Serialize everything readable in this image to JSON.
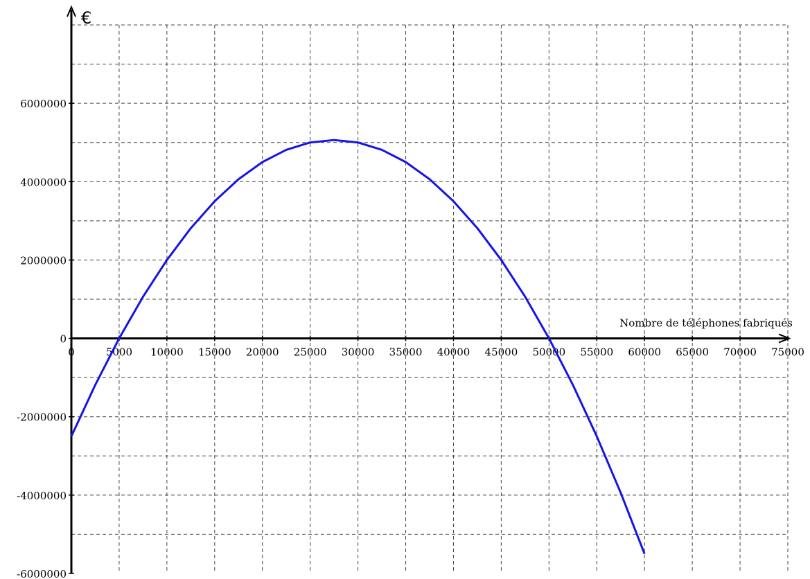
{
  "chart_data": {
    "type": "line",
    "title": "",
    "xlabel": "Nombre de téléphones fabriqués",
    "ylabel": "€",
    "xlim": [
      0,
      75000
    ],
    "ylim": [
      -6000000,
      8000000
    ],
    "grid": true,
    "x_major_ticks": [
      0,
      5000,
      10000,
      15000,
      20000,
      25000,
      30000,
      35000,
      40000,
      45000,
      50000,
      55000,
      60000,
      65000,
      70000,
      75000
    ],
    "x_tick_labels": [
      "0",
      "5000",
      "10000",
      "15000",
      "20000",
      "25000",
      "30000",
      "35000",
      "40000",
      "45000",
      "50000",
      "55000",
      "60000",
      "65000",
      "70000",
      "75000"
    ],
    "y_grid_step": 1000000,
    "y_major_ticks": [
      -6000000,
      -4000000,
      -2000000,
      0,
      2000000,
      4000000,
      6000000
    ],
    "y_tick_labels": [
      "-6000000",
      "-4000000",
      "-2000000",
      "0",
      "2000000",
      "4000000",
      "6000000"
    ],
    "series": [
      {
        "color": "#1414e6",
        "points": [
          [
            0,
            -2500000
          ],
          [
            2500,
            -1187500
          ],
          [
            5000,
            0
          ],
          [
            7500,
            1062500
          ],
          [
            10000,
            2000000
          ],
          [
            12500,
            2812500
          ],
          [
            15000,
            3500000
          ],
          [
            17500,
            4062500
          ],
          [
            20000,
            4500000
          ],
          [
            22500,
            4812500
          ],
          [
            25000,
            5000000
          ],
          [
            27500,
            5062500
          ],
          [
            30000,
            5000000
          ],
          [
            32500,
            4812500
          ],
          [
            35000,
            4500000
          ],
          [
            37500,
            4062500
          ],
          [
            40000,
            3500000
          ],
          [
            42500,
            2812500
          ],
          [
            45000,
            2000000
          ],
          [
            47500,
            1062500
          ],
          [
            50000,
            0
          ],
          [
            52500,
            -1187500
          ],
          [
            55000,
            -2500000
          ],
          [
            57500,
            -3937500
          ],
          [
            60000,
            -5500000
          ]
        ]
      }
    ]
  }
}
